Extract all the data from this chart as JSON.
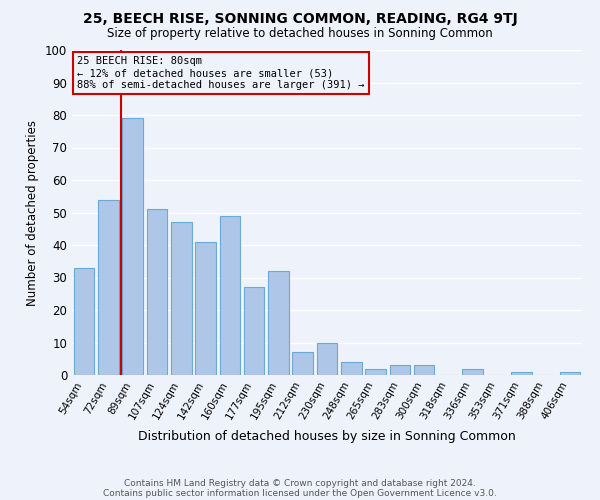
{
  "title": "25, BEECH RISE, SONNING COMMON, READING, RG4 9TJ",
  "subtitle": "Size of property relative to detached houses in Sonning Common",
  "xlabel": "Distribution of detached houses by size in Sonning Common",
  "ylabel": "Number of detached properties",
  "bar_labels": [
    "54sqm",
    "72sqm",
    "89sqm",
    "107sqm",
    "124sqm",
    "142sqm",
    "160sqm",
    "177sqm",
    "195sqm",
    "212sqm",
    "230sqm",
    "248sqm",
    "265sqm",
    "283sqm",
    "300sqm",
    "318sqm",
    "336sqm",
    "353sqm",
    "371sqm",
    "388sqm",
    "406sqm"
  ],
  "bar_values": [
    33,
    54,
    79,
    51,
    47,
    41,
    49,
    27,
    32,
    7,
    10,
    4,
    2,
    3,
    3,
    0,
    2,
    0,
    1,
    0,
    1
  ],
  "bar_color": "#aec6e8",
  "bar_edge_color": "#6aaad4",
  "marker_line_color": "#cc0000",
  "ylim": [
    0,
    100
  ],
  "yticks": [
    0,
    10,
    20,
    30,
    40,
    50,
    60,
    70,
    80,
    90,
    100
  ],
  "annotation_title": "25 BEECH RISE: 80sqm",
  "annotation_line1": "← 12% of detached houses are smaller (53)",
  "annotation_line2": "88% of semi-detached houses are larger (391) →",
  "annotation_box_color": "#cc0000",
  "footnote1": "Contains HM Land Registry data © Crown copyright and database right 2024.",
  "footnote2": "Contains public sector information licensed under the Open Government Licence v3.0.",
  "bg_color": "#eef2fa",
  "grid_color": "#ffffff"
}
